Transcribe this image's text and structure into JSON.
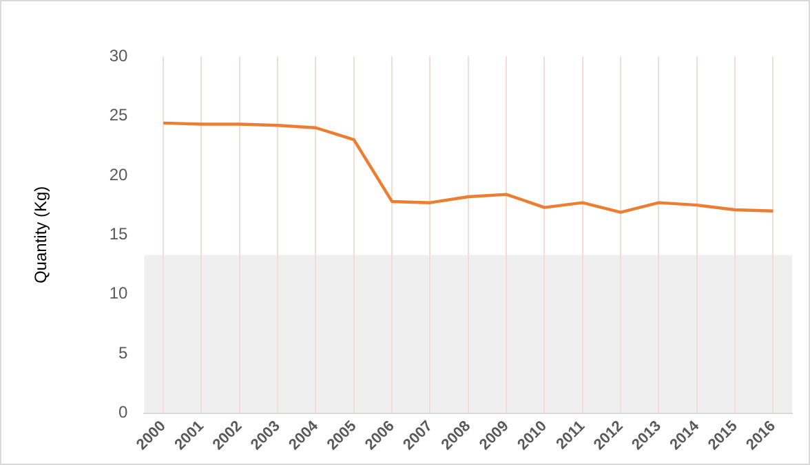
{
  "chart_data": {
    "type": "line",
    "ylabel": "Quantity (Kg)",
    "categories": [
      "2000",
      "2001",
      "2002",
      "2003",
      "2004",
      "2005",
      "2006",
      "2007",
      "2008",
      "2009",
      "2010",
      "2011",
      "2012",
      "2013",
      "2014",
      "2015",
      "2016"
    ],
    "series": [
      {
        "color": "#ed7d31",
        "values": [
          24.4,
          24.3,
          24.3,
          24.2,
          24.0,
          23.0,
          17.8,
          17.7,
          18.2,
          18.4,
          17.3,
          17.7,
          16.9,
          17.7,
          17.5,
          17.1,
          17.0
        ]
      }
    ],
    "ylim": [
      0,
      30
    ],
    "yticks": [
      0,
      5,
      10,
      15,
      20,
      25,
      30
    ],
    "grid": "x",
    "marker": "none",
    "line_style": "solid",
    "bands": [
      {
        "axis": "y",
        "from": 0,
        "to": 13.3,
        "color": "#efefef"
      }
    ]
  }
}
